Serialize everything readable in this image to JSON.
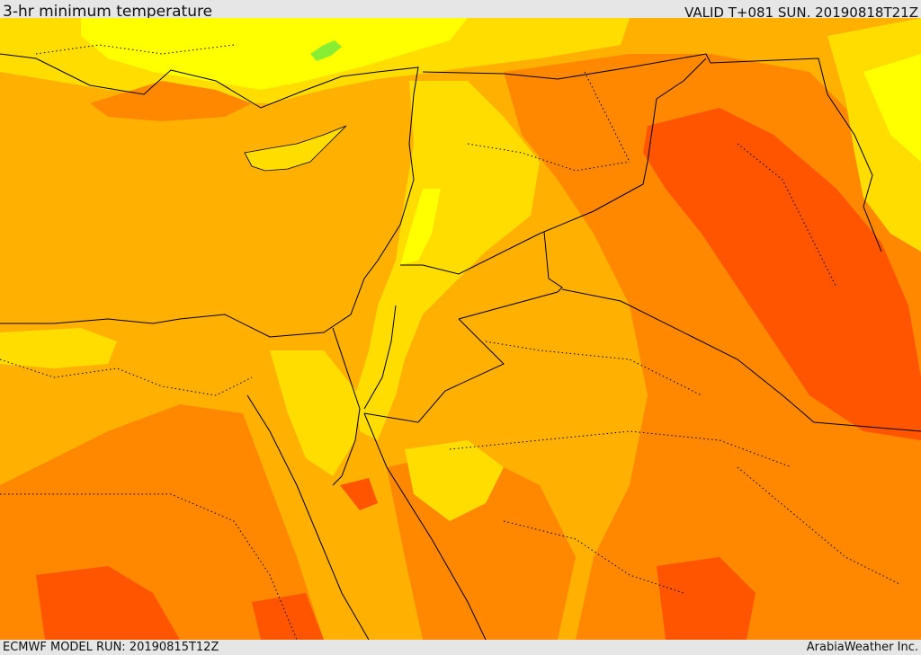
{
  "header": {
    "title": "3-hr minimum temperature",
    "valid": "VALID T+081 SUN. 20190818T21Z"
  },
  "footer": {
    "model_run": "ECMWF MODEL RUN: 20190815T12Z",
    "credit": "ArabiaWeather Inc."
  },
  "map": {
    "field": "3-hr minimum temperature",
    "colors": {
      "pale_yellow": "#ffff7a",
      "yellow": "#ffff00",
      "gold": "#ffdd00",
      "amber": "#ffb000",
      "orange": "#ff8800",
      "red_orange": "#ff5500",
      "green_patch": "#88ee33",
      "border_line": "#000000"
    }
  }
}
